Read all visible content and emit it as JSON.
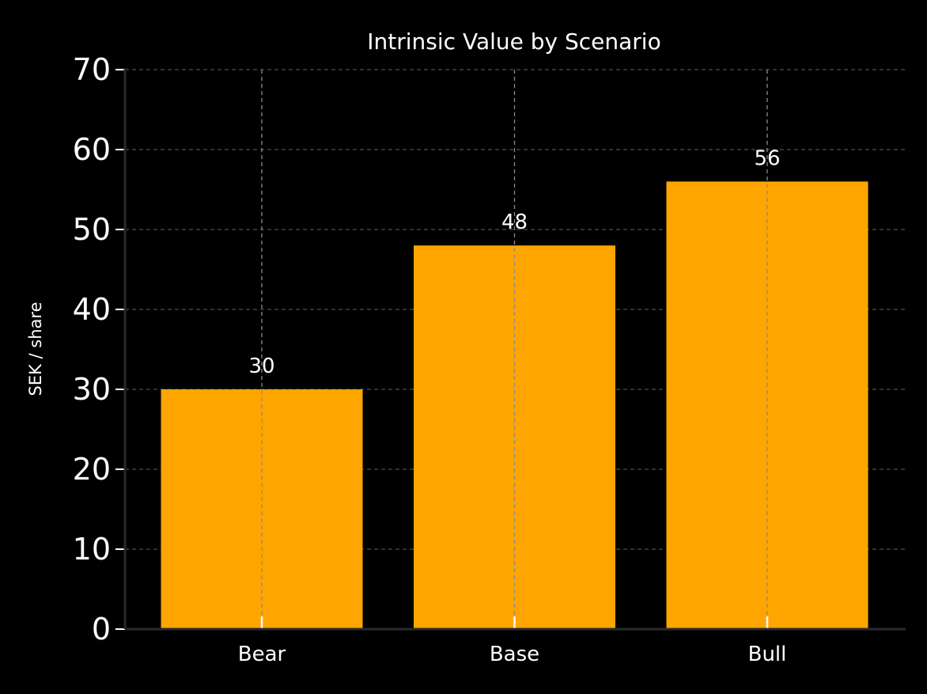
{
  "chart_data": {
    "type": "bar",
    "title": "Intrinsic Value by Scenario",
    "xlabel": "",
    "ylabel": "SEK / share",
    "categories": [
      "Bear",
      "Base",
      "Bull"
    ],
    "values": [
      30,
      48,
      56
    ],
    "data_labels": [
      "30",
      "48",
      "56"
    ],
    "ylim": [
      0,
      70
    ],
    "yticks": [
      0,
      10,
      20,
      30,
      40,
      50,
      60,
      70
    ],
    "grid": true,
    "legend": "none",
    "bar_color": "#FFA500",
    "background_color": "#000000",
    "text_color": "#FFFFFF",
    "grid_color": "#4D4D4D"
  }
}
